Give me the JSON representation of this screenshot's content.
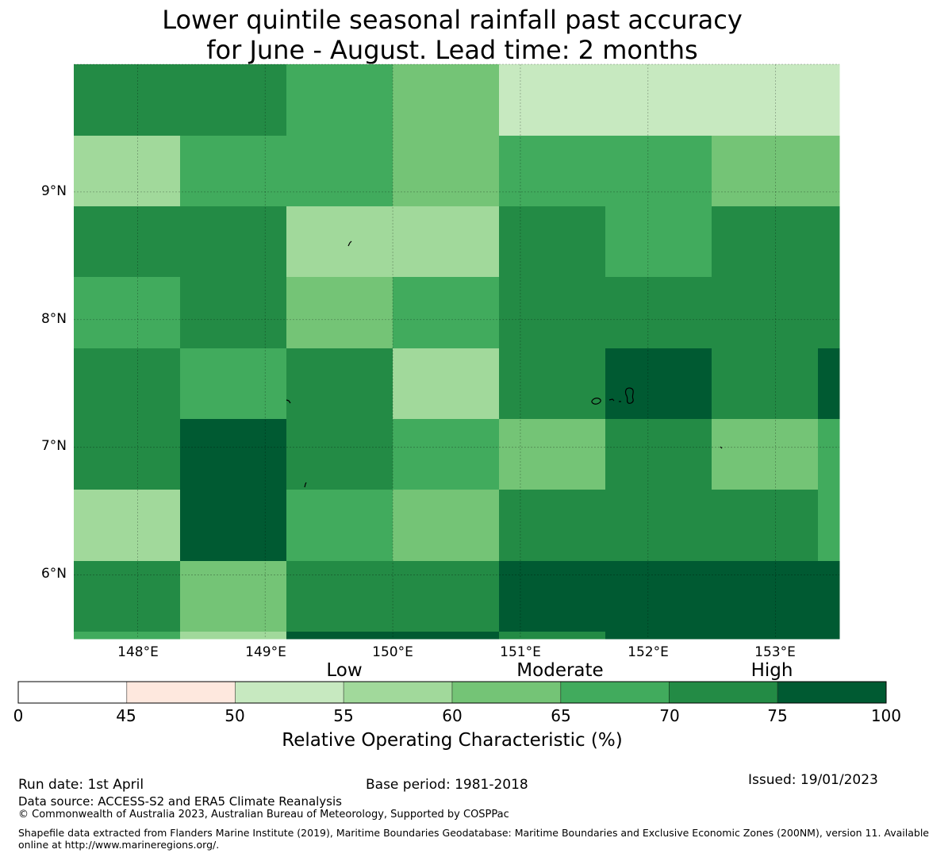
{
  "title": {
    "line1": "Lower quintile seasonal rainfall past accuracy",
    "line2": "for June - August. Lead time: 2 months"
  },
  "map": {
    "lon_range": [
      147.5,
      153.5
    ],
    "lat_range": [
      5.5,
      10.0
    ],
    "lat_labels": [
      "9°N",
      "8°N",
      "7°N",
      "6°N"
    ],
    "lon_labels": [
      "148°E",
      "149°E",
      "150°E",
      "151°E",
      "152°E",
      "153°E"
    ],
    "grid_on": true,
    "cells": [
      [
        "75",
        "75",
        "70",
        "65",
        "55",
        "55",
        "55",
        "55"
      ],
      [
        "60",
        "70",
        "70",
        "65",
        "70",
        "70",
        "65",
        "65"
      ],
      [
        "75",
        "75",
        "60",
        "60",
        "75",
        "70",
        "75",
        "75"
      ],
      [
        "70",
        "75",
        "65",
        "70",
        "75",
        "75",
        "75",
        "75"
      ],
      [
        "75",
        "70",
        "75",
        "60",
        "75",
        "100",
        "75",
        "100"
      ],
      [
        "75",
        "100",
        "75",
        "70",
        "65",
        "75",
        "65",
        "70"
      ],
      [
        "60",
        "100",
        "70",
        "65",
        "75",
        "75",
        "75",
        "70"
      ],
      [
        "75",
        "65",
        "75",
        "75",
        "100",
        "100",
        "100",
        "100"
      ],
      [
        "70",
        "60",
        "100",
        "100",
        "75",
        "100",
        "100",
        "100"
      ]
    ]
  },
  "categories": {
    "low": "Low",
    "moderate": "Moderate",
    "high": "High"
  },
  "colorbar": {
    "ticks": [
      "0",
      "45",
      "50",
      "55",
      "60",
      "65",
      "70",
      "75",
      "100"
    ],
    "colors": [
      "#ffffff",
      "#fee8de",
      "#c7e9c0",
      "#a1d99b",
      "#74c476",
      "#41ab5d",
      "#238b45",
      "#005a32"
    ],
    "label": "Relative Operating Characteristic (%)"
  },
  "footer": {
    "run_date": "Run date: 1st April",
    "base_period": "Base period: 1981-2018",
    "issued": "Issued: 19/01/2023",
    "data_source": "Data source: ACCESS-S2 and ERA5 Climate Reanalysis",
    "copyright": "© Commonwealth of Australia 2023, Australian Bureau of Meteorology, Supported by COSPPac",
    "shapefile_line1": "Shapefile data extracted from Flanders Marine Institute (2019), Maritime Boundaries Geodatabase: Maritime Boundaries and Exclusive Economic Zones (200NM), version 11. Available",
    "shapefile_line2": "online at http://www.marineregions.org/."
  }
}
